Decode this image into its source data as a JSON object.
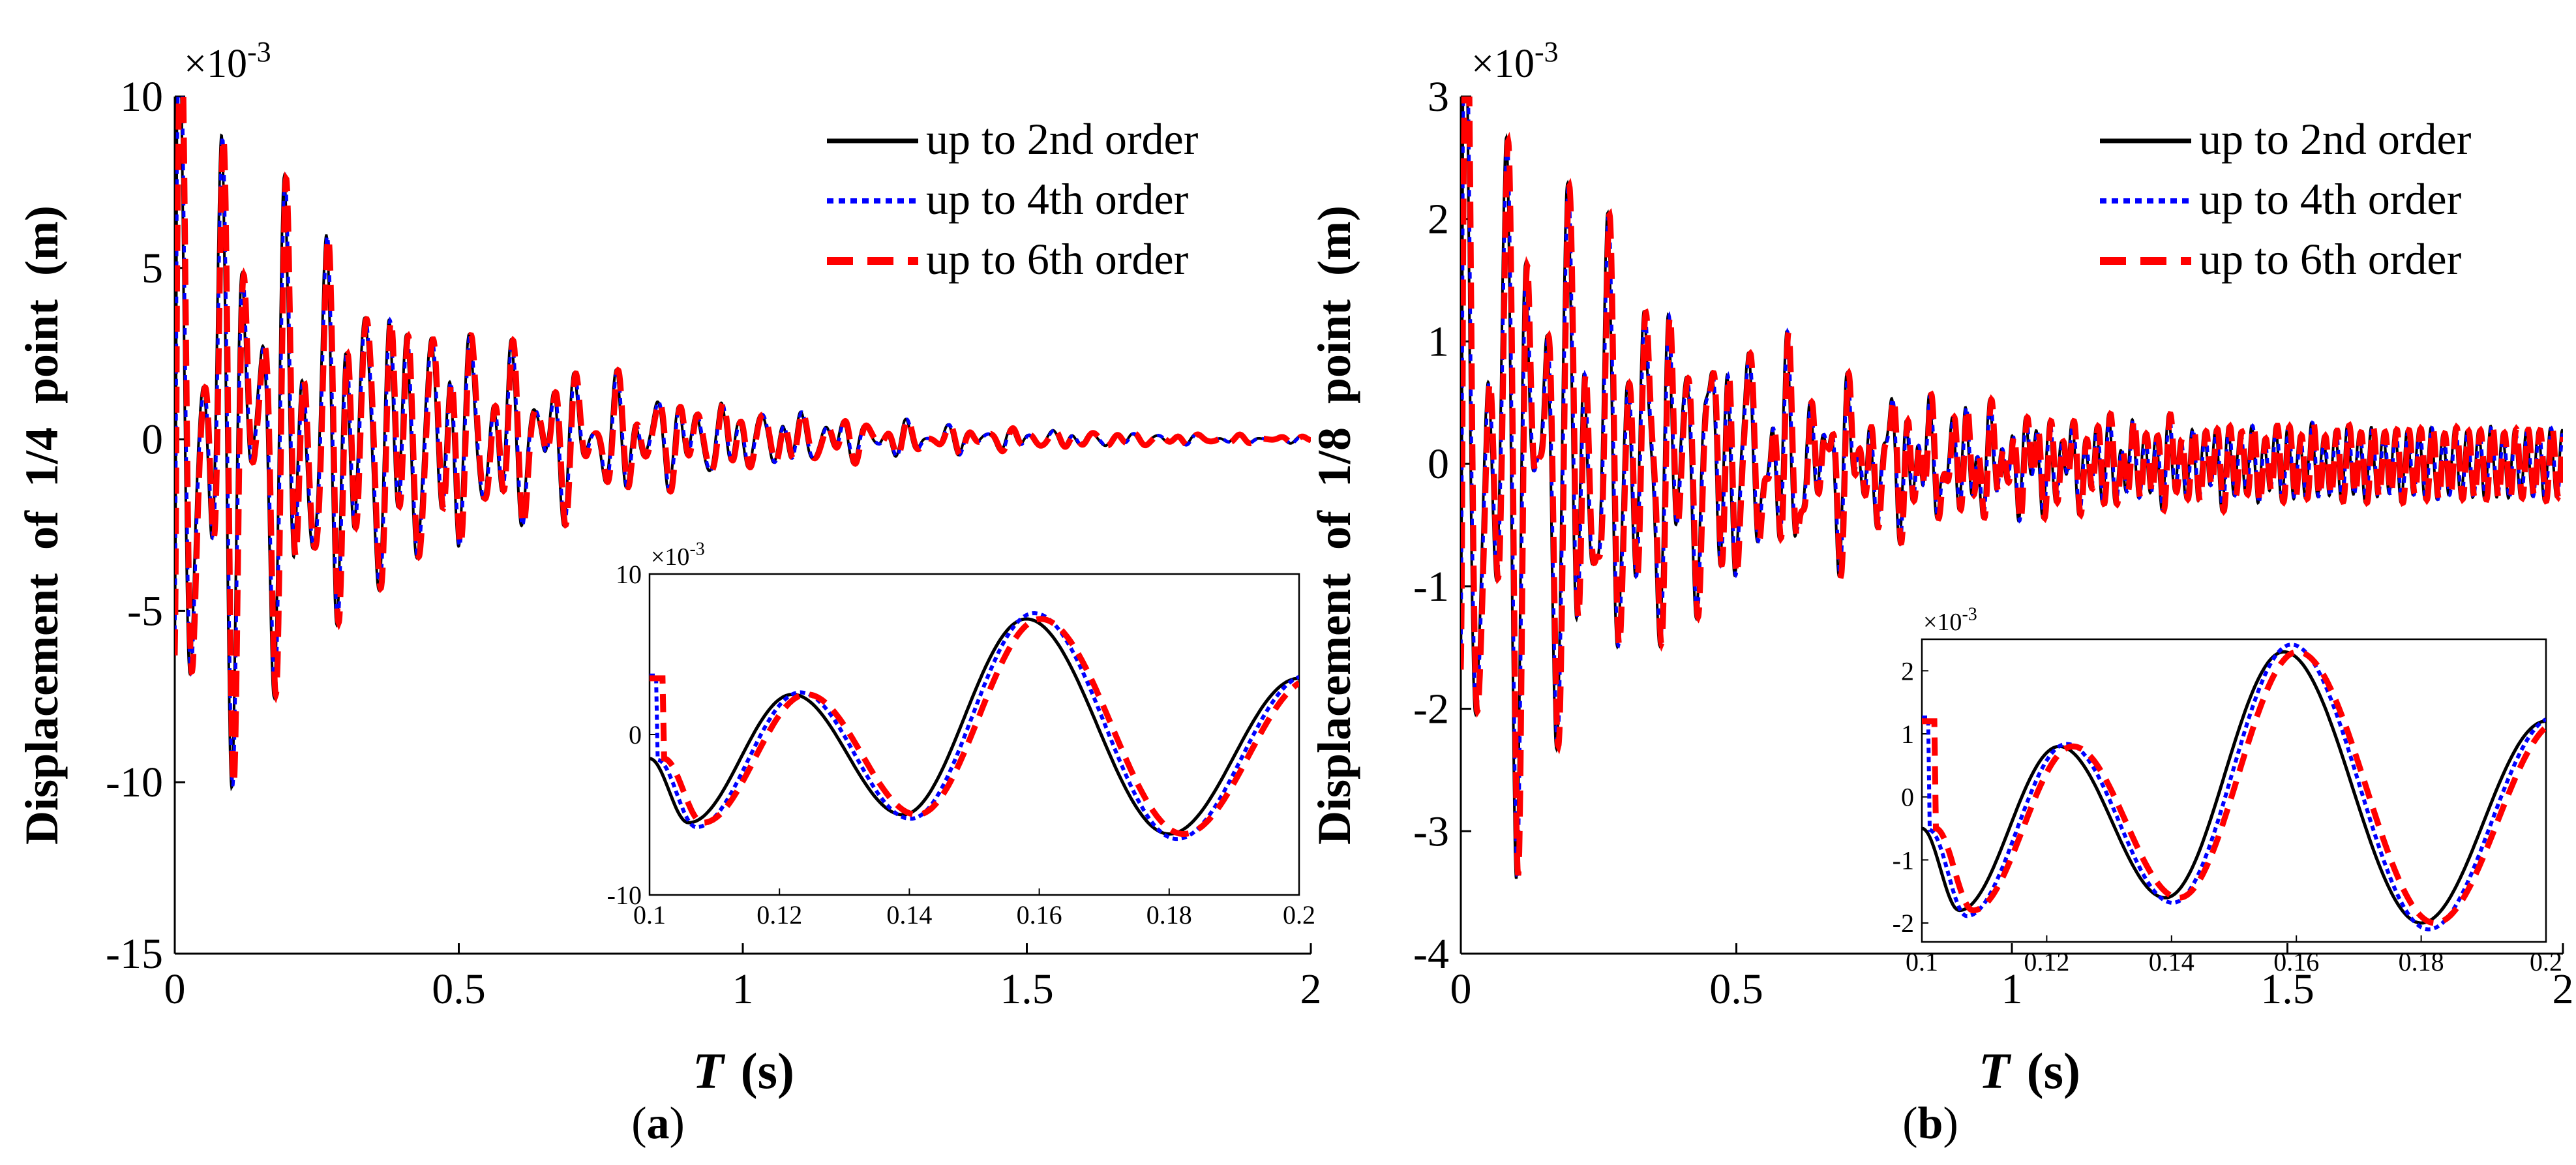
{
  "chart_data": [
    {
      "panel": "(a)",
      "type": "line",
      "xlabel": "T  (s)",
      "ylabel": "Displacement  of  1/4  point  (m)",
      "multiplier": "×10-3",
      "xlim": [
        0,
        2
      ],
      "ylim": [
        -15,
        10
      ],
      "xticks": [
        "0",
        "0.5",
        "1",
        "1.5",
        "2"
      ],
      "yticks": [
        "-15",
        "-10",
        "-5",
        "0",
        "5",
        "10"
      ],
      "legend": [
        "up to 2nd order",
        "up to 4th order",
        "up to 6th order"
      ],
      "series": [
        {
          "name": "up to 2nd order",
          "color": "#000000"
        },
        {
          "name": "up to 4th order",
          "color": "#0000ff"
        },
        {
          "name": "up to 6th order",
          "color": "#ff0000"
        }
      ],
      "signal": {
        "amp": 9.2,
        "decay": 2.4,
        "omega": 172,
        "base": 1,
        "hf_amp": 0,
        "hf_omega": 0
      },
      "inset": {
        "xlim": [
          0.1,
          0.2
        ],
        "ylim": [
          -10,
          10
        ],
        "xticks": [
          "0.1",
          "0.12",
          "0.14",
          "0.16",
          "0.18",
          "0.2"
        ],
        "yticks": [
          "-10",
          "0",
          "10"
        ],
        "multiplier": "×10-3",
        "x": [
          0.1,
          0.106,
          0.122,
          0.139,
          0.158,
          0.18,
          0.2
        ],
        "y": [
          -1.5,
          -5.5,
          2.5,
          -5.0,
          7.2,
          -6.2,
          3.5
        ]
      }
    },
    {
      "panel": "(b)",
      "type": "line",
      "xlabel": "T  (s)",
      "ylabel": "Displacement  of  1/8  point  (m)",
      "multiplier": "×10-3",
      "xlim": [
        0,
        2
      ],
      "ylim": [
        -4,
        3
      ],
      "xticks": [
        "0",
        "0.5",
        "1",
        "1.5",
        "2"
      ],
      "yticks": [
        "-4",
        "-3",
        "-2",
        "-1",
        "0",
        "1",
        "2",
        "3"
      ],
      "legend": [
        "up to 2nd order",
        "up to 4th order",
        "up to 6th order"
      ],
      "series": [
        {
          "name": "up to 2nd order",
          "color": "#000000"
        },
        {
          "name": "up to 4th order",
          "color": "#0000ff"
        },
        {
          "name": "up to 6th order",
          "color": "#ff0000"
        }
      ],
      "signal": {
        "amp": 3.0,
        "decay": 2.6,
        "omega": 172,
        "base": 1,
        "hf_amp": 0.28,
        "hf_omega": 290
      },
      "inset": {
        "xlim": [
          0.1,
          0.2
        ],
        "ylim": [
          -2.3,
          2.5
        ],
        "xticks": [
          "0.1",
          "0.12",
          "0.14",
          "0.16",
          "0.18",
          "0.2"
        ],
        "yticks": [
          "-2",
          "-1",
          "0",
          "1",
          "2"
        ],
        "multiplier": "×10-3",
        "x": [
          0.1,
          0.106,
          0.122,
          0.139,
          0.158,
          0.18,
          0.2
        ],
        "y": [
          -0.5,
          -1.8,
          0.8,
          -1.6,
          2.3,
          -2.0,
          1.2
        ]
      }
    }
  ]
}
